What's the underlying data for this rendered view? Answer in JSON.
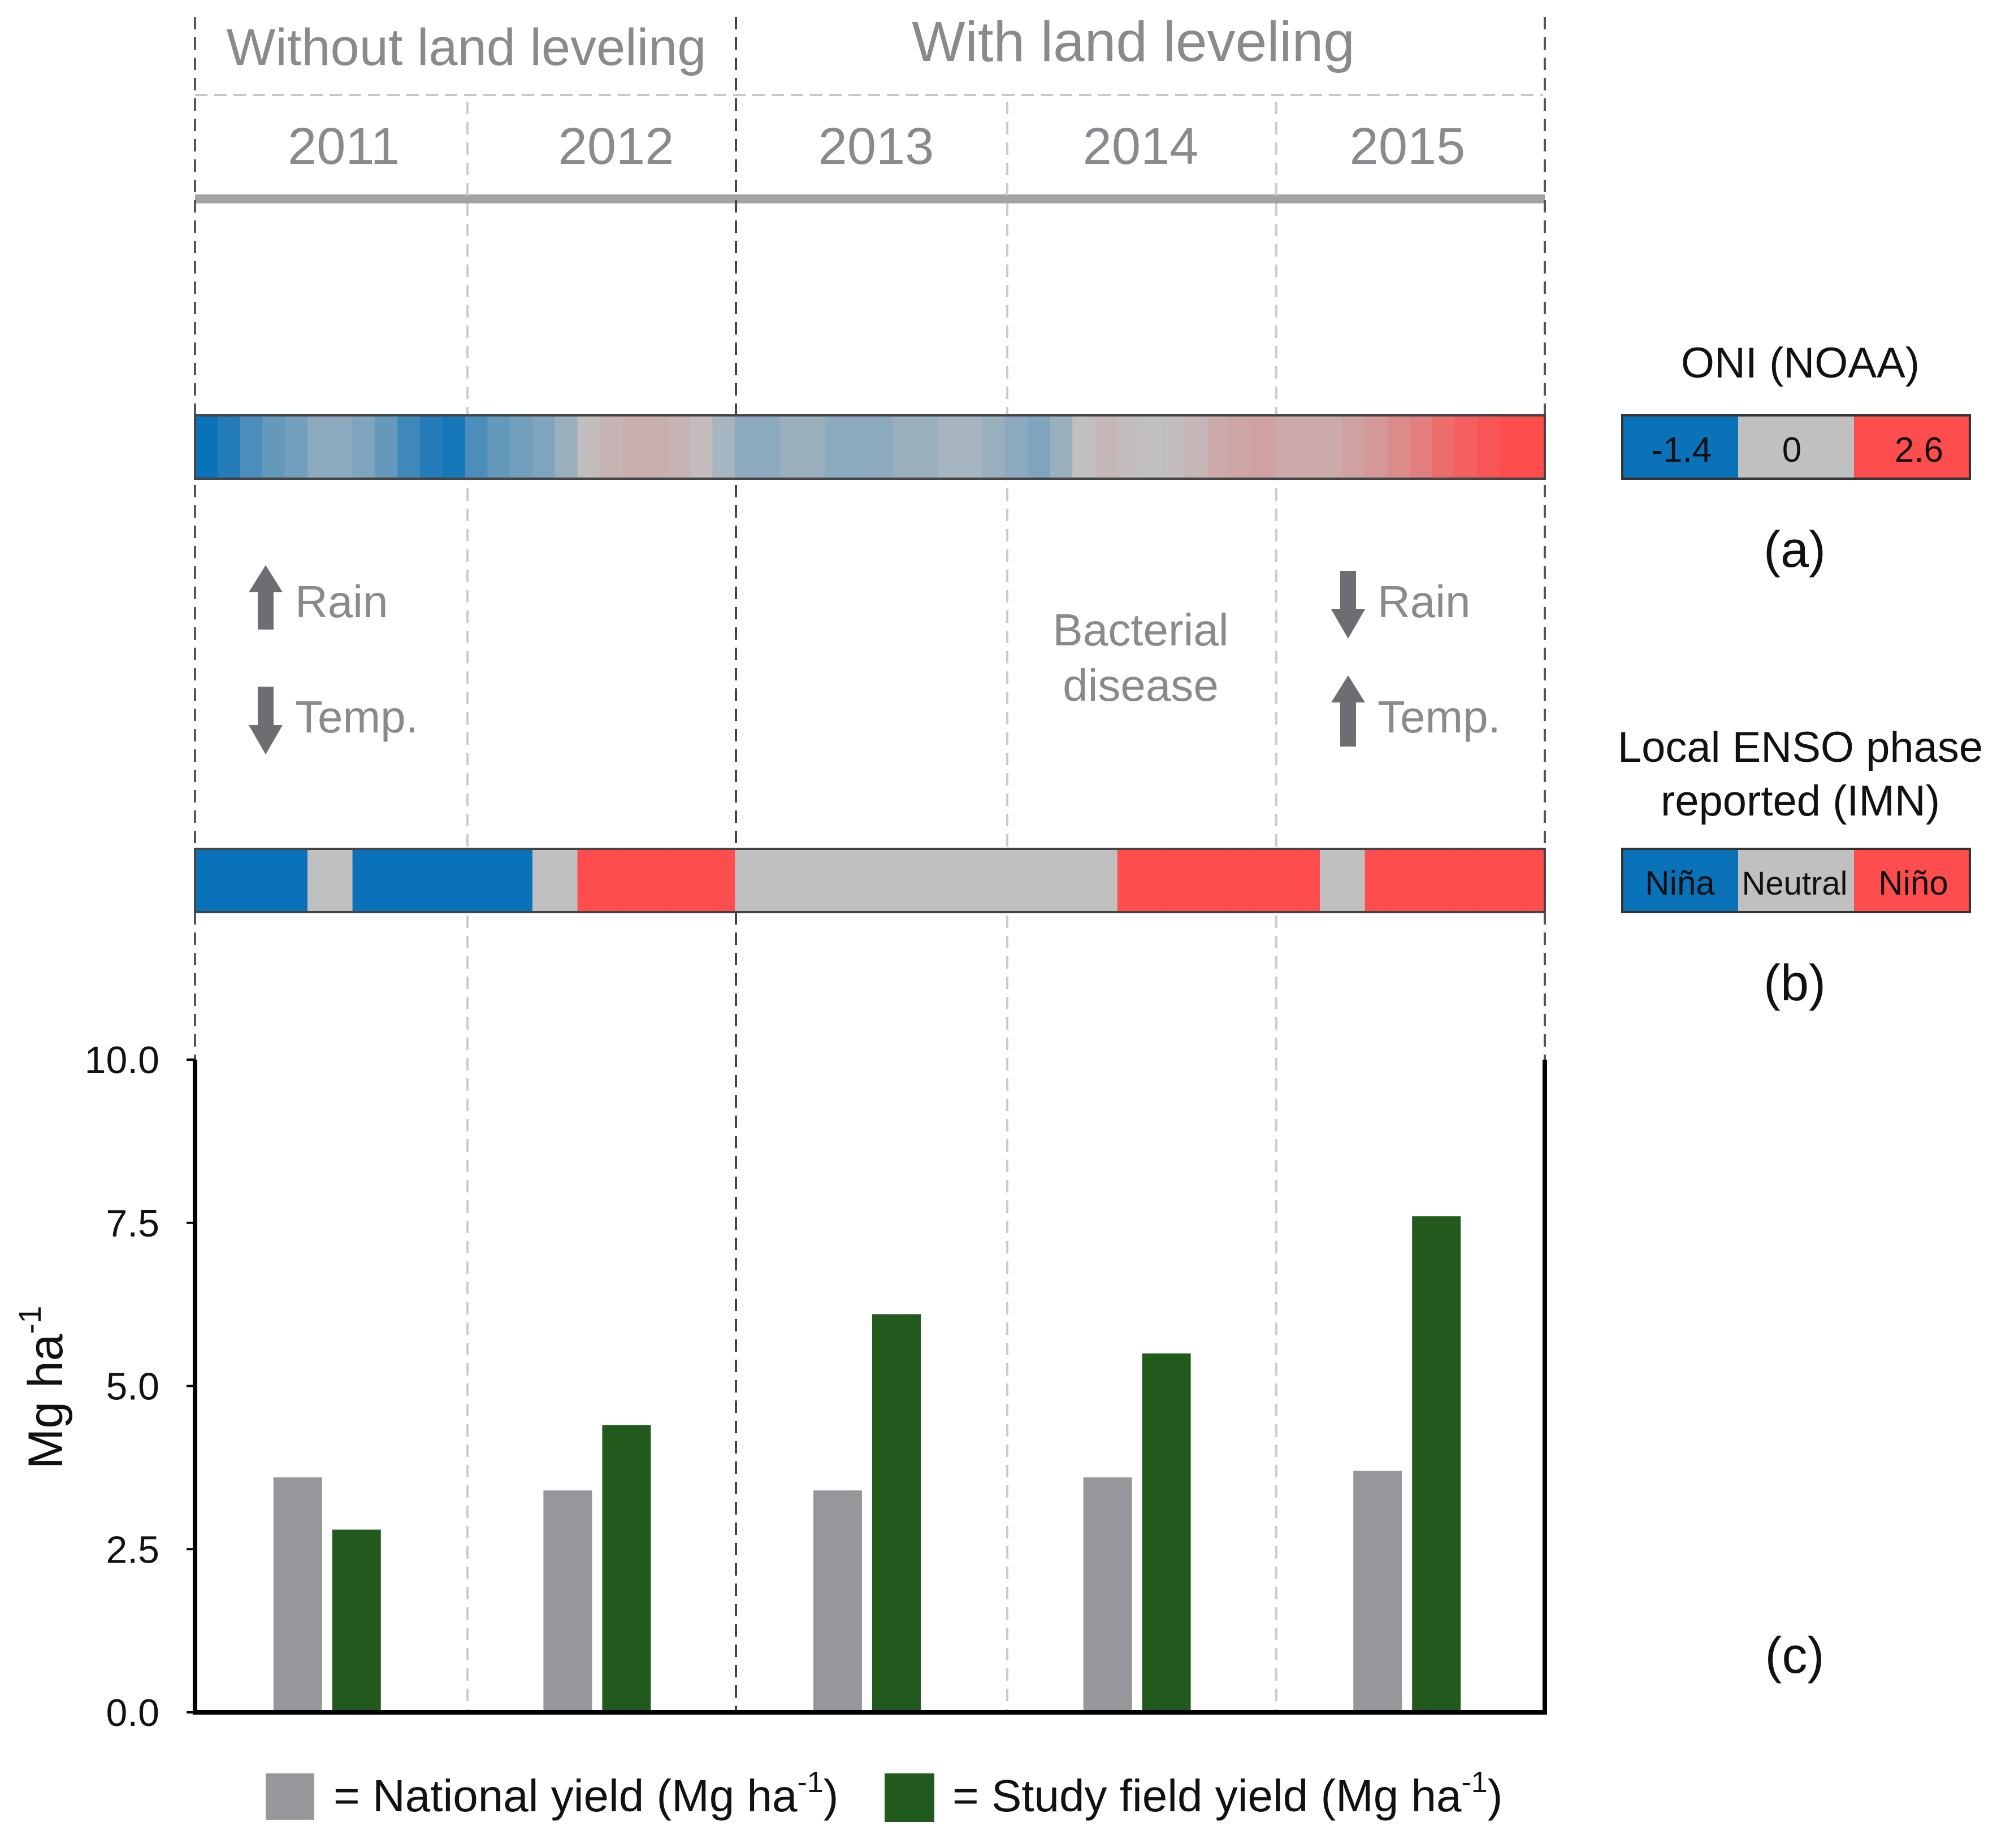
{
  "periods": [
    {
      "label": "Without land leveling",
      "years": [
        "2011",
        "2012"
      ]
    },
    {
      "label": "With land leveling",
      "years": [
        "2013",
        "2014",
        "2015"
      ]
    }
  ],
  "years": [
    "2011",
    "2012",
    "2013",
    "2014",
    "2015"
  ],
  "oni": {
    "legend_title": "ONI (NOAA)",
    "legend_min": "-1.4",
    "legend_mid": "0",
    "legend_max": "2.6",
    "min": -1.4,
    "max": 2.6,
    "monthly_values": [
      -1.4,
      -1.2,
      -0.9,
      -0.7,
      -0.6,
      -0.4,
      -0.4,
      -0.5,
      -0.7,
      -1.0,
      -1.2,
      -1.3,
      -0.9,
      -0.7,
      -0.6,
      -0.5,
      -0.3,
      0.1,
      0.3,
      0.4,
      0.4,
      0.3,
      0.1,
      -0.2,
      -0.4,
      -0.4,
      -0.3,
      -0.3,
      -0.4,
      -0.4,
      -0.4,
      -0.3,
      -0.3,
      -0.2,
      -0.2,
      -0.3,
      -0.4,
      -0.5,
      -0.3,
      0.0,
      0.2,
      0.1,
      0.0,
      0.1,
      0.2,
      0.5,
      0.6,
      0.7,
      0.5,
      0.5,
      0.5,
      0.7,
      0.9,
      1.2,
      1.5,
      1.9,
      2.2,
      2.4,
      2.6,
      2.6
    ],
    "colors": {
      "negative": "#0a72b8",
      "neutral": "#c0c0c0",
      "positive": "#fd4d4d"
    },
    "panel_label": "(a)"
  },
  "enso": {
    "legend_title_line1": "Local ENSO phase",
    "legend_title_line2": "reported (IMN)",
    "legend_labels": [
      "Niña",
      "Neutral",
      "Niño"
    ],
    "phase_colors": {
      "Niña": "#0a72b8",
      "Neutral": "#c0c0c0",
      "Niño": "#fd4d4d"
    },
    "monthly_phases": [
      "Niña",
      "Niña",
      "Niña",
      "Niña",
      "Niña",
      "Neutral",
      "Neutral",
      "Niña",
      "Niña",
      "Niña",
      "Niña",
      "Niña",
      "Niña",
      "Niña",
      "Niña",
      "Neutral",
      "Neutral",
      "Niño",
      "Niño",
      "Niño",
      "Niño",
      "Niño",
      "Niño",
      "Niño",
      "Neutral",
      "Neutral",
      "Neutral",
      "Neutral",
      "Neutral",
      "Neutral",
      "Neutral",
      "Neutral",
      "Neutral",
      "Neutral",
      "Neutral",
      "Neutral",
      "Neutral",
      "Neutral",
      "Neutral",
      "Neutral",
      "Neutral",
      "Niño",
      "Niño",
      "Niño",
      "Niño",
      "Niño",
      "Niño",
      "Niño",
      "Niño",
      "Niño",
      "Neutral",
      "Neutral",
      "Niño",
      "Niño",
      "Niño",
      "Niño",
      "Niño",
      "Niño",
      "Niño",
      "Niño"
    ],
    "panel_label": "(b)"
  },
  "annotations": {
    "rain_2011": "Rain",
    "temp_2011": "Temp.",
    "bacterial_line1": "Bacterial",
    "bacterial_line2": "disease",
    "rain_2015": "Rain",
    "temp_2015": "Temp."
  },
  "chart_data": {
    "type": "bar",
    "categories": [
      "2011",
      "2012",
      "2013",
      "2014",
      "2015"
    ],
    "series": [
      {
        "name": "National yield",
        "color": "#97979b",
        "values": [
          3.6,
          3.4,
          3.4,
          3.6,
          3.7
        ]
      },
      {
        "name": "Study field yield",
        "color": "#225a1e",
        "values": [
          2.8,
          4.4,
          6.1,
          5.5,
          7.6
        ]
      }
    ],
    "ylabel": "Mg ha",
    "ylabel_sup": "-1",
    "ylim": [
      0,
      10
    ],
    "yticks": [
      0,
      2.5,
      5,
      7.5,
      10
    ],
    "ytick_labels": [
      "0.0",
      "2.5",
      "5.0",
      "7.5",
      "10.0"
    ],
    "legend": [
      {
        "text": "= National yield (Mg ha",
        "sup": "-1",
        "close": ")"
      },
      {
        "text": "= Study field yield (Mg ha",
        "sup": "-1",
        "close": ")"
      }
    ],
    "panel_label": "(c)"
  }
}
